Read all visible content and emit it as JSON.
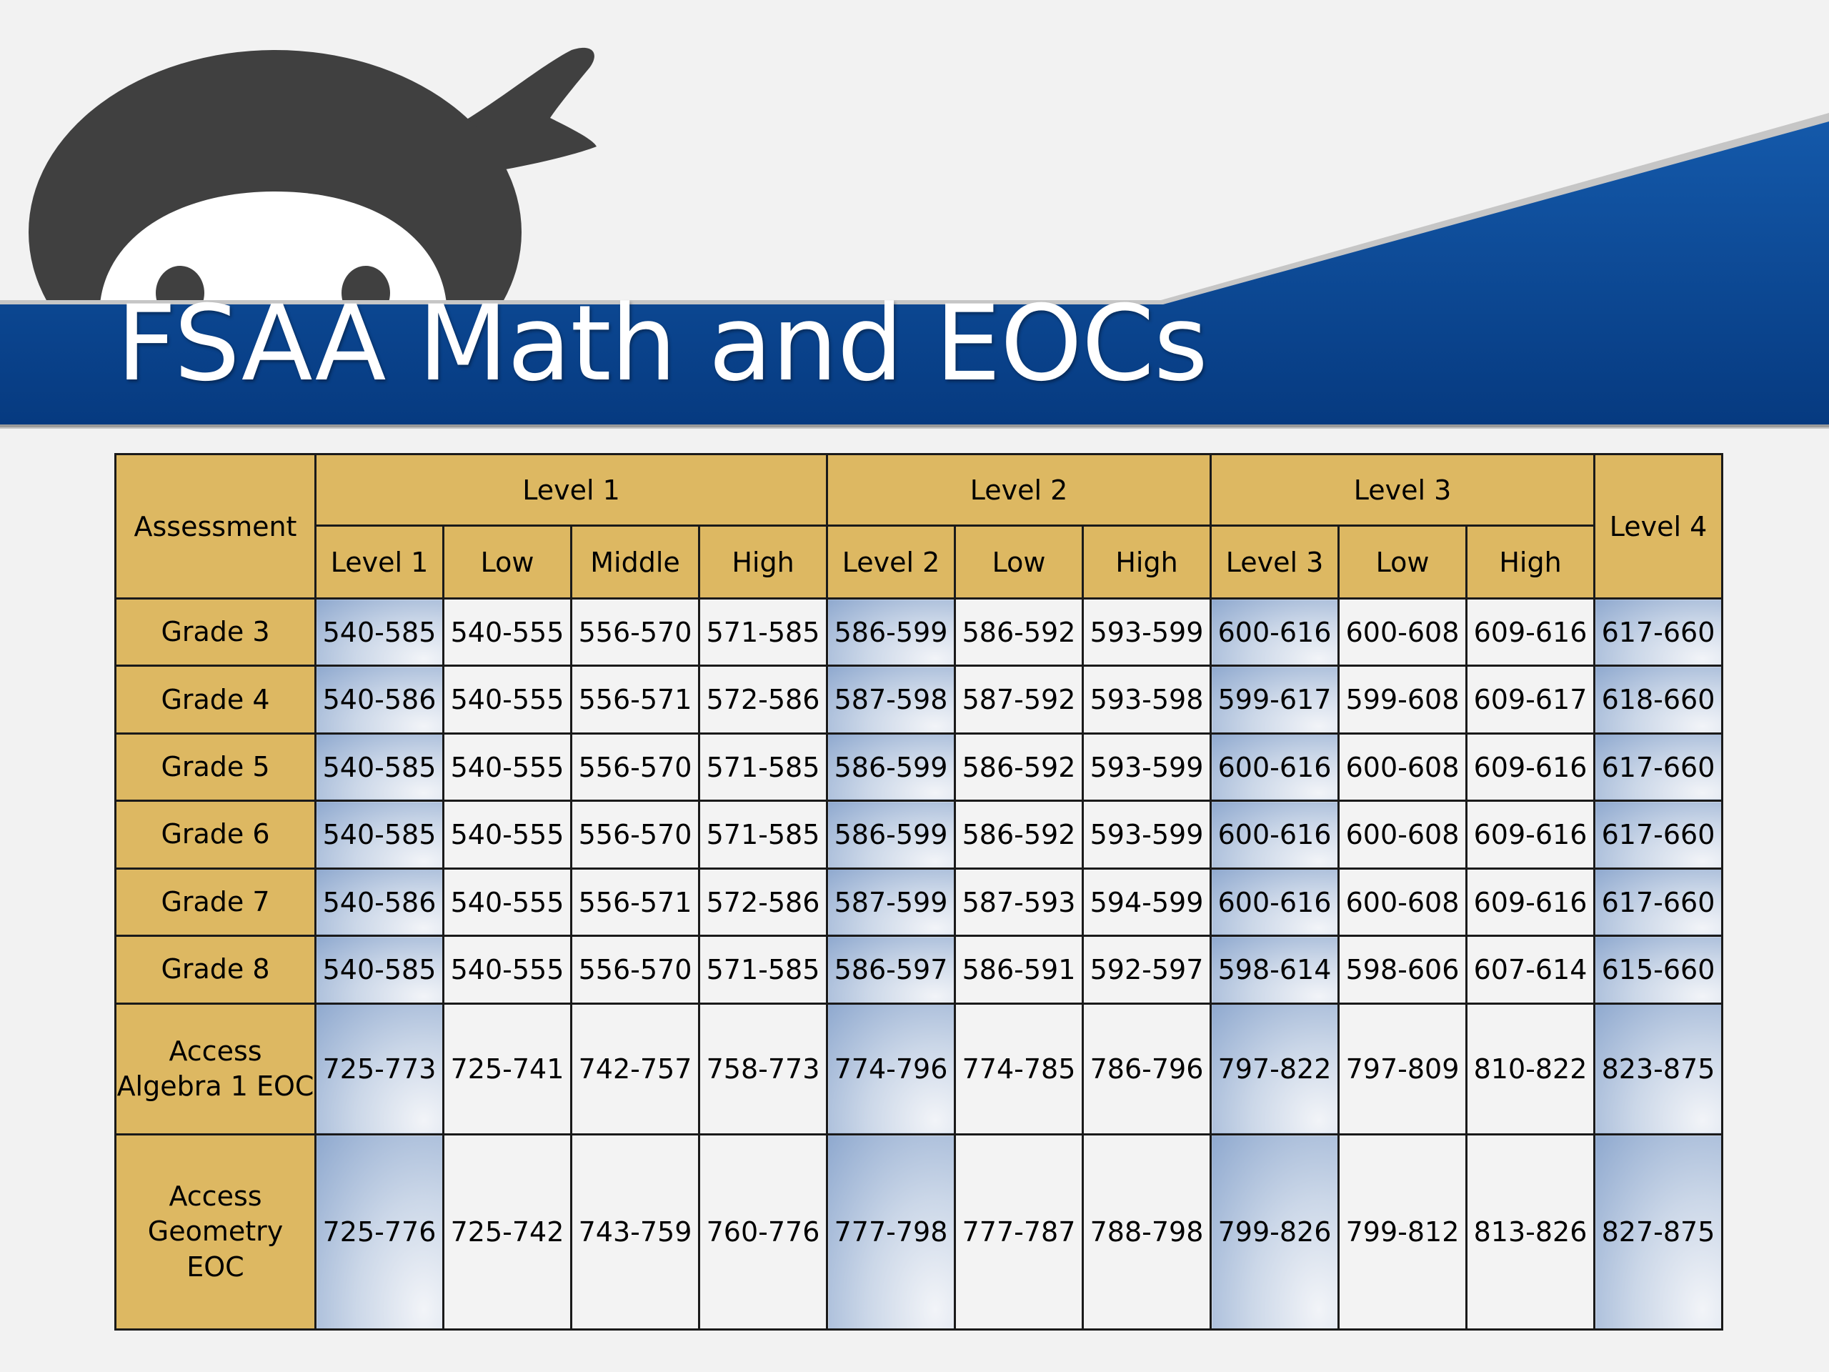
{
  "slide": {
    "title": "FSAA Math and EOCs",
    "colors": {
      "band": "#0b4a96",
      "header_gold": "#ddb862",
      "mascot": "#404040"
    },
    "mascot": "ninja-mascot-icon"
  },
  "table": {
    "assessment_header": "Assessment",
    "groups": [
      {
        "label": "Level 1",
        "subs": [
          "Level 1",
          "Low",
          "Middle",
          "High"
        ]
      },
      {
        "label": "Level 2",
        "subs": [
          "Level 2",
          "Low",
          "High"
        ]
      },
      {
        "label": "Level 3",
        "subs": [
          "Level 3",
          "Low",
          "High"
        ]
      }
    ],
    "level4_header": "Level 4",
    "rows": [
      {
        "label": "Grade 3",
        "cells": [
          "540-585",
          "540-555",
          "556-570",
          "571-585",
          "586-599",
          "586-592",
          "593-599",
          "600-616",
          "600-608",
          "609-616",
          "617-660"
        ]
      },
      {
        "label": "Grade 4",
        "cells": [
          "540-586",
          "540-555",
          "556-571",
          "572-586",
          "587-598",
          "587-592",
          "593-598",
          "599-617",
          "599-608",
          "609-617",
          "618-660"
        ]
      },
      {
        "label": "Grade 5",
        "cells": [
          "540-585",
          "540-555",
          "556-570",
          "571-585",
          "586-599",
          "586-592",
          "593-599",
          "600-616",
          "600-608",
          "609-616",
          "617-660"
        ]
      },
      {
        "label": "Grade 6",
        "cells": [
          "540-585",
          "540-555",
          "556-570",
          "571-585",
          "586-599",
          "586-592",
          "593-599",
          "600-616",
          "600-608",
          "609-616",
          "617-660"
        ]
      },
      {
        "label": "Grade 7",
        "cells": [
          "540-586",
          "540-555",
          "556-571",
          "572-586",
          "587-599",
          "587-593",
          "594-599",
          "600-616",
          "600-608",
          "609-616",
          "617-660"
        ]
      },
      {
        "label": "Grade 8",
        "cells": [
          "540-585",
          "540-555",
          "556-570",
          "571-585",
          "586-597",
          "586-591",
          "592-597",
          "598-614",
          "598-606",
          "607-614",
          "615-660"
        ]
      },
      {
        "label": "Access Algebra 1 EOC",
        "cells": [
          "725-773",
          "725-741",
          "742-757",
          "758-773",
          "774-796",
          "774-785",
          "786-796",
          "797-822",
          "797-809",
          "810-822",
          "823-875"
        ]
      },
      {
        "label": "Access Geometry EOC",
        "cells": [
          "725-776",
          "725-742",
          "743-759",
          "760-776",
          "777-798",
          "777-787",
          "788-798",
          "799-826",
          "799-812",
          "813-826",
          "827-875"
        ]
      }
    ]
  }
}
